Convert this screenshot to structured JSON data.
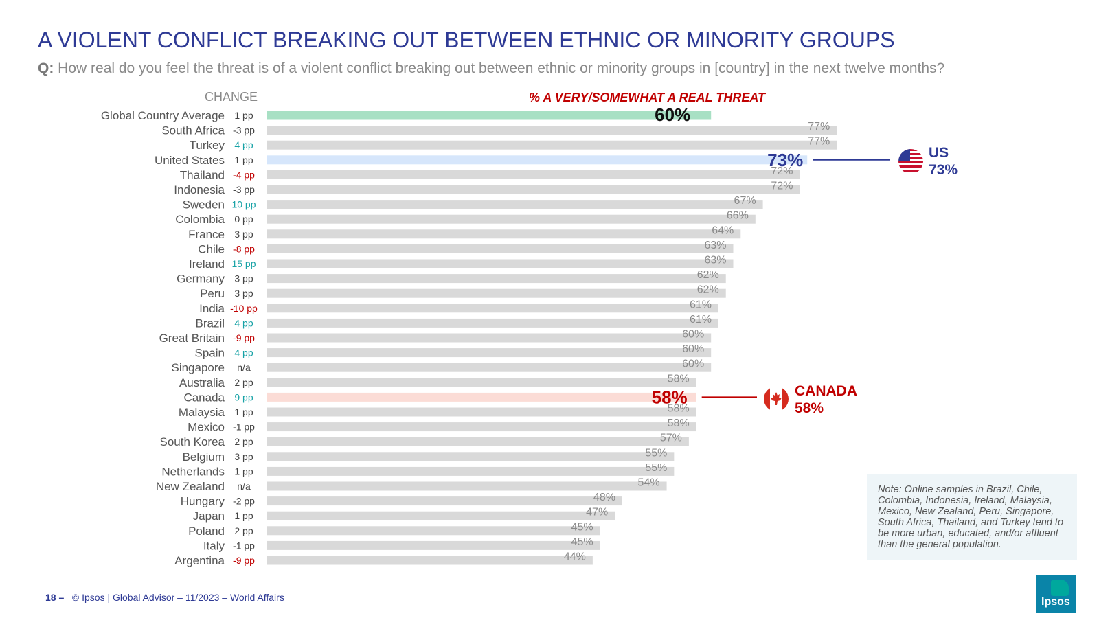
{
  "title": "A VIOLENT CONFLICT BREAKING OUT BETWEEN ETHNIC OR MINORITY GROUPS",
  "question": {
    "prefix": "Q:",
    "text": "How real do you feel the threat is of a violent conflict breaking out between ethnic or minority groups in [country] in the next twelve months?"
  },
  "change_header": "CHANGE",
  "metric_header": "% A VERY/SOMEWHAT A REAL THREAT",
  "colors": {
    "bar_default": "#d9d9d9",
    "bar_global": "#a8e0c4",
    "bar_us": "#d6e6fb",
    "bar_canada": "#fbdcd6",
    "us_accent": "#2e3a95",
    "canada_accent": "#c00000",
    "change_positive": "#17a2a6",
    "change_negative": "#c00000",
    "change_neutral": "#444444",
    "value_label": "#8a8a8a"
  },
  "callouts": {
    "us": {
      "name": "US",
      "value": "73%",
      "icon": "us-flag-icon"
    },
    "canada": {
      "name": "CANADA",
      "value": "58%",
      "icon": "canada-flag-icon"
    }
  },
  "note": "Note: Online samples in Brazil, Chile, Colombia, Indonesia, Ireland, Malaysia, Mexico, New Zealand, Peru, Singapore, South Africa, Thailand, and Turkey tend to be more urban, educated, and/or affluent than the general population.",
  "footer": {
    "page": "18 –",
    "text": "© Ipsos | Global Advisor – 11/2023 – World Affairs"
  },
  "logo_text": "Ipsos",
  "chart_data": {
    "type": "bar",
    "orientation": "horizontal",
    "title": "% A VERY/SOMEWHAT A REAL THREAT",
    "xlim": [
      0,
      100
    ],
    "categories": [
      "Global Country Average",
      "South Africa",
      "Turkey",
      "United States",
      "Thailand",
      "Indonesia",
      "Sweden",
      "Colombia",
      "France",
      "Chile",
      "Ireland",
      "Germany",
      "Peru",
      "India",
      "Brazil",
      "Great Britain",
      "Spain",
      "Singapore",
      "Australia",
      "Canada",
      "Malaysia",
      "Mexico",
      "South Korea",
      "Belgium",
      "Netherlands",
      "New Zealand",
      "Hungary",
      "Japan",
      "Poland",
      "Italy",
      "Argentina"
    ],
    "values": [
      60,
      77,
      77,
      73,
      72,
      72,
      67,
      66,
      64,
      63,
      63,
      62,
      62,
      61,
      61,
      60,
      60,
      60,
      58,
      58,
      58,
      58,
      57,
      55,
      55,
      54,
      48,
      47,
      45,
      45,
      44
    ],
    "value_labels": [
      "60%",
      "77%",
      "77%",
      "73%",
      "72%",
      "72%",
      "67%",
      "66%",
      "64%",
      "63%",
      "63%",
      "62%",
      "62%",
      "61%",
      "61%",
      "60%",
      "60%",
      "60%",
      "58%",
      "58%",
      "58%",
      "58%",
      "57%",
      "55%",
      "55%",
      "54%",
      "48%",
      "47%",
      "45%",
      "45%",
      "44%"
    ],
    "changes": [
      "1 pp",
      "-3 pp",
      "4 pp",
      "1 pp",
      "-4 pp",
      "-3 pp",
      "10 pp",
      "0 pp",
      "3 pp",
      "-8 pp",
      "15 pp",
      "3 pp",
      "3 pp",
      "-10 pp",
      "4 pp",
      "-9 pp",
      "4 pp",
      "n/a",
      "2 pp",
      "9 pp",
      "1 pp",
      "-1 pp",
      "2 pp",
      "3 pp",
      "1 pp",
      "n/a",
      "-2 pp",
      "1 pp",
      "2 pp",
      "-1 pp",
      "-9 pp"
    ],
    "change_tone": [
      "neutral",
      "neutral",
      "positive",
      "neutral",
      "negative",
      "neutral",
      "positive",
      "neutral",
      "neutral",
      "negative",
      "positive",
      "neutral",
      "neutral",
      "negative",
      "positive",
      "negative",
      "positive",
      "neutral",
      "neutral",
      "positive",
      "neutral",
      "neutral",
      "neutral",
      "neutral",
      "neutral",
      "neutral",
      "neutral",
      "neutral",
      "neutral",
      "neutral",
      "negative"
    ],
    "highlight": [
      "global",
      "",
      "",
      "us",
      "",
      "",
      "",
      "",
      "",
      "",
      "",
      "",
      "",
      "",
      "",
      "",
      "",
      "",
      "",
      "canada",
      "",
      "",
      "",
      "",
      "",
      "",
      "",
      "",
      "",
      "",
      ""
    ]
  }
}
